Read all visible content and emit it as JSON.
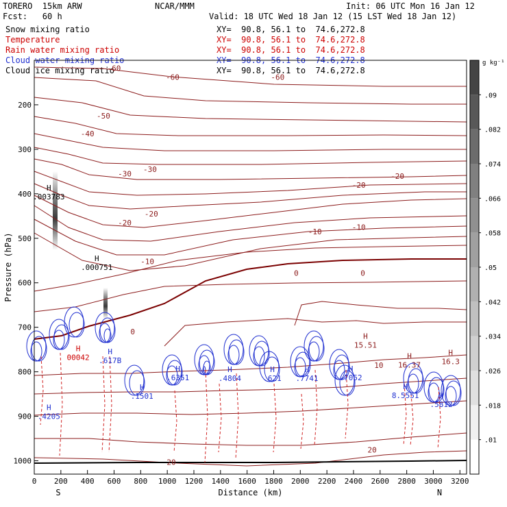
{
  "header": {
    "model": "TORERO  15km ARW",
    "org": "NCAR/MMM",
    "init": "Init: 06 UTC Mon 16 Jan 12",
    "fcst": "Fcst:   60 h",
    "valid": "Valid: 18 UTC Wed 18 Jan 12 (15 LST Wed 18 Jan 12)"
  },
  "fields": [
    {
      "name": "Snow mixing ratio",
      "xy": "XY=  90.8, 56.1 to  74.6,272.8",
      "color": "#000000"
    },
    {
      "name": "Temperature",
      "xy": "XY=  90.8, 56.1 to  74.6,272.8",
      "color": "#cc0000"
    },
    {
      "name": "Rain water mixing ratio",
      "xy": "XY=  90.8, 56.1 to  74.6,272.8",
      "color": "#cc0000"
    },
    {
      "name": "Cloud water mixing ratio",
      "xy": "XY=  90.8, 56.1 to  74.6,272.8",
      "color": "#1f2fd0"
    },
    {
      "name": "Cloud ice mixing ratio",
      "xy": "XY=  90.8, 56.1 to  74.6,272.8",
      "color": "#000000"
    }
  ],
  "chart_data": {
    "type": "contour",
    "xlabel": "Distance (km)",
    "ylabel": "Pressure (hPa)",
    "xlim": [
      0,
      3250
    ],
    "ylim": [
      1030,
      100
    ],
    "xticks": [
      0,
      200,
      400,
      600,
      800,
      1000,
      1200,
      1400,
      1600,
      1800,
      2000,
      2200,
      2400,
      2600,
      2800,
      3000,
      3200
    ],
    "yticks": [
      200,
      300,
      400,
      500,
      600,
      700,
      800,
      900,
      1000
    ],
    "x_end_labels": {
      "left": "S",
      "right": "N"
    },
    "surface_pressure": 1020,
    "colorbar": {
      "unit_label": "g kg⁻¹",
      "ticks": [
        ".01",
        ".018",
        ".026",
        ".034",
        ".042",
        ".05",
        ".058",
        ".066",
        ".074",
        ".082",
        ".09"
      ],
      "colors": [
        "#ffffff",
        "#f0f0f0",
        "#e0e0e0",
        "#d0d0d0",
        "#c0c0c0",
        "#b0b0b0",
        "#a0a0a0",
        "#909090",
        "#808080",
        "#6c6c6c",
        "#585858",
        "#444444"
      ]
    },
    "temperature_labels": [
      {
        "x": 600,
        "p": 118,
        "label": "-60"
      },
      {
        "x": 1040,
        "p": 138,
        "label": "-60"
      },
      {
        "x": 1830,
        "p": 138,
        "label": "-60"
      },
      {
        "x": 520,
        "p": 225,
        "label": "-50"
      },
      {
        "x": 400,
        "p": 265,
        "label": "-40"
      },
      {
        "x": 680,
        "p": 355,
        "label": "-30"
      },
      {
        "x": 870,
        "p": 345,
        "label": "-30"
      },
      {
        "x": 680,
        "p": 465,
        "label": "-20"
      },
      {
        "x": 880,
        "p": 445,
        "label": "-20"
      },
      {
        "x": 2440,
        "p": 380,
        "label": "-20"
      },
      {
        "x": 2730,
        "p": 360,
        "label": "-20"
      },
      {
        "x": 2110,
        "p": 485,
        "label": "-10"
      },
      {
        "x": 2440,
        "p": 475,
        "label": "-10"
      },
      {
        "x": 850,
        "p": 552,
        "label": "-10"
      },
      {
        "x": 1970,
        "p": 578,
        "label": "0"
      },
      {
        "x": 2470,
        "p": 578,
        "label": "0"
      },
      {
        "x": 740,
        "p": 710,
        "label": "0"
      },
      {
        "x": 2590,
        "p": 785,
        "label": "10"
      },
      {
        "x": 2540,
        "p": 975,
        "label": "20"
      },
      {
        "x": 1030,
        "p": 1003,
        "label": "20"
      }
    ],
    "maxima": [
      {
        "x": 110,
        "p": 402,
        "value": ".003783",
        "field": "snow"
      },
      {
        "x": 470,
        "p": 560,
        "value": ".000751",
        "field": "snow"
      },
      {
        "x": 2490,
        "p": 735,
        "value": "15.51",
        "field": "temperature"
      },
      {
        "x": 2820,
        "p": 780,
        "value": "16.37",
        "field": "temperature"
      },
      {
        "x": 3130,
        "p": 772,
        "value": "16.3",
        "field": "temperature"
      },
      {
        "x": 330,
        "p": 763,
        "value": "00042",
        "field": "rain"
      },
      {
        "x": 570,
        "p": 770,
        "value": ".617B",
        "field": "cloud"
      },
      {
        "x": 810,
        "p": 850,
        "value": ".1501",
        "field": "cloud"
      },
      {
        "x": 1080,
        "p": 808,
        "value": ".6351",
        "field": "cloud"
      },
      {
        "x": 1470,
        "p": 810,
        "value": ".4804",
        "field": "cloud"
      },
      {
        "x": 1790,
        "p": 810,
        "value": ".621",
        "field": "cloud"
      },
      {
        "x": 2050,
        "p": 810,
        "value": ".7741",
        "field": "cloud"
      },
      {
        "x": 2380,
        "p": 808,
        "value": ".7052",
        "field": "cloud"
      },
      {
        "x": 2790,
        "p": 848,
        "value": "8.5551",
        "field": "cloud"
      },
      {
        "x": 3060,
        "p": 868,
        "value": ".5812",
        "field": "cloud"
      },
      {
        "x": 110,
        "p": 895,
        "value": ".4205",
        "field": "cloud"
      }
    ]
  }
}
